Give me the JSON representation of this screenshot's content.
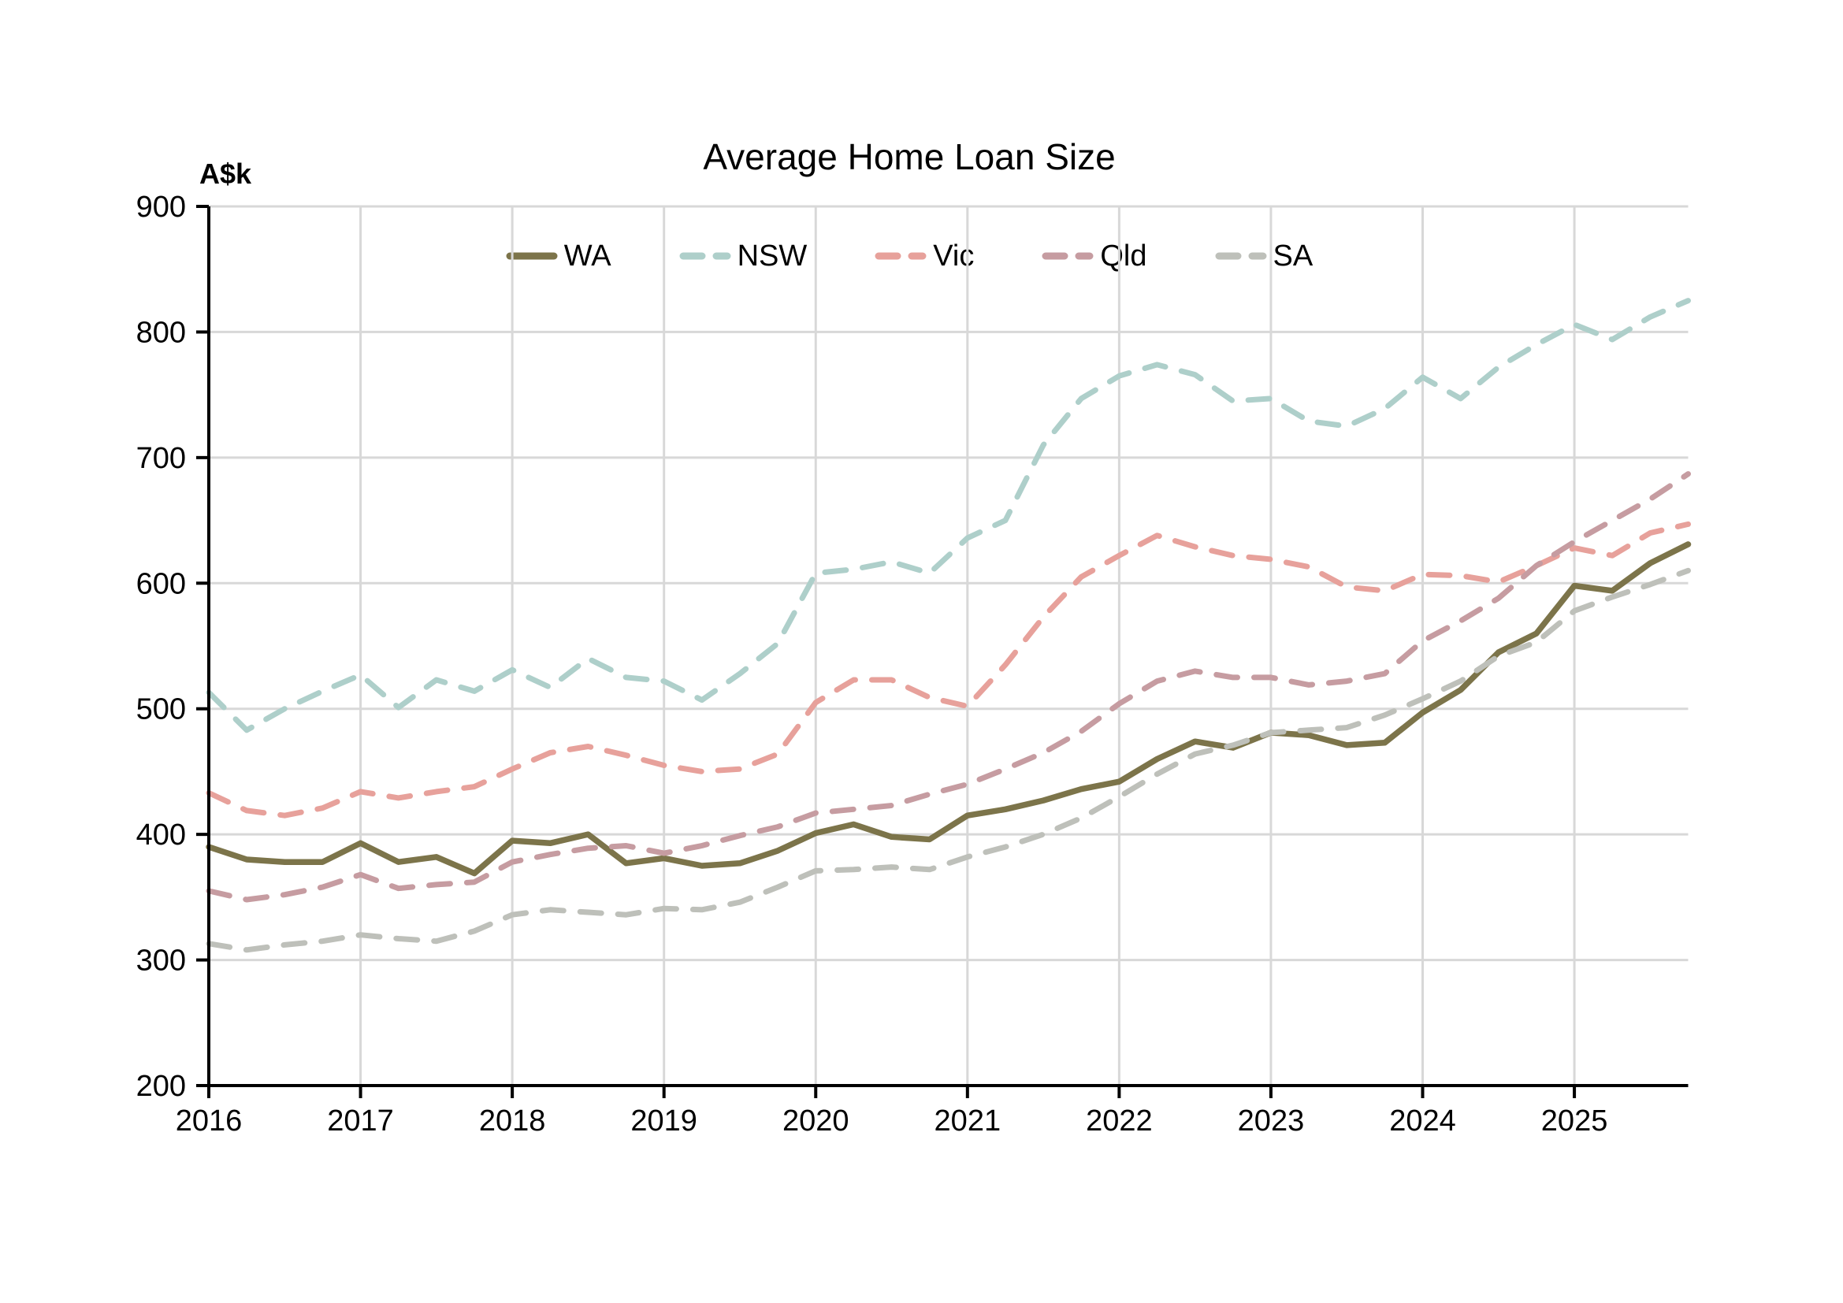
{
  "page": {
    "title": "Average Home Loan Size",
    "y_axis_unit": "A$k"
  },
  "chart_data": {
    "type": "line",
    "title": "Average Home Loan Size",
    "ylabel": "A$k",
    "xlabel": "",
    "grid": true,
    "legend_position": "top-center",
    "ylim": [
      200,
      900
    ],
    "y_ticks": [
      200,
      300,
      400,
      500,
      600,
      700,
      800,
      900
    ],
    "x_tick_labels": [
      "2016",
      "2017",
      "2018",
      "2019",
      "2020",
      "2021",
      "2022",
      "2023",
      "2024",
      "2025"
    ],
    "x_start": 2016,
    "x_step_years": 0.25,
    "x_end": 2025.75,
    "colors": {
      "grid": "#D8D8D8",
      "axis": "#000000",
      "text": "#000000",
      "background": "#FFFFFF"
    },
    "series": [
      {
        "name": "WA",
        "color": "#7C744A",
        "dashed": false,
        "values": [
          390,
          380,
          378,
          378,
          393,
          378,
          382,
          369,
          395,
          393,
          400,
          377,
          381,
          375,
          377,
          387,
          401,
          408,
          398,
          396,
          415,
          420,
          427,
          436,
          442,
          460,
          474,
          469,
          481,
          479,
          471,
          473,
          497,
          515,
          545,
          560,
          598,
          594,
          616,
          631
        ]
      },
      {
        "name": "NSW",
        "color": "#AECFCA",
        "dashed": true,
        "values": [
          513,
          483,
          500,
          514,
          527,
          501,
          523,
          514,
          531,
          517,
          540,
          525,
          522,
          507,
          528,
          552,
          608,
          611,
          617,
          608,
          636,
          650,
          710,
          747,
          765,
          774,
          766,
          745,
          747,
          729,
          725,
          739,
          764,
          747,
          772,
          790,
          806,
          794,
          812,
          825
        ]
      },
      {
        "name": "Vic",
        "color": "#E7A19B",
        "dashed": true,
        "values": [
          433,
          419,
          415,
          421,
          434,
          429,
          434,
          438,
          452,
          465,
          470,
          463,
          455,
          450,
          452,
          464,
          505,
          523,
          523,
          509,
          502,
          535,
          573,
          605,
          622,
          638,
          629,
          622,
          619,
          613,
          597,
          594,
          607,
          606,
          601,
          614,
          628,
          622,
          640,
          647
        ]
      },
      {
        "name": "Qld",
        "color": "#C69CA1",
        "dashed": true,
        "values": [
          355,
          348,
          352,
          358,
          368,
          357,
          360,
          362,
          378,
          384,
          389,
          391,
          385,
          391,
          399,
          406,
          417,
          420,
          423,
          432,
          440,
          452,
          465,
          482,
          504,
          522,
          530,
          525,
          525,
          519,
          522,
          528,
          554,
          570,
          588,
          614,
          633,
          650,
          667,
          687
        ]
      },
      {
        "name": "SA",
        "color": "#BEC0BA",
        "dashed": true,
        "values": [
          313,
          308,
          312,
          315,
          320,
          317,
          315,
          323,
          336,
          340,
          338,
          336,
          341,
          340,
          346,
          358,
          371,
          372,
          374,
          372,
          382,
          390,
          400,
          413,
          430,
          448,
          464,
          471,
          481,
          483,
          485,
          495,
          508,
          522,
          542,
          553,
          578,
          589,
          599,
          610
        ]
      }
    ]
  }
}
